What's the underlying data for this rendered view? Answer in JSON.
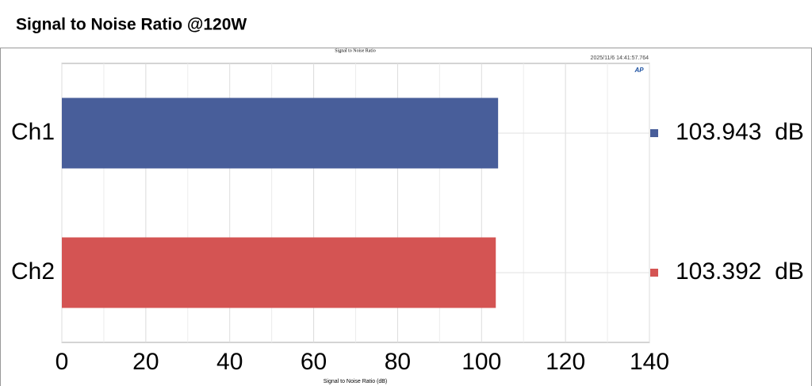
{
  "chart_data": {
    "type": "bar",
    "orientation": "horizontal",
    "title": "Signal to Noise Ratio @120W",
    "inner_title": "Signal to Noise Ratio",
    "timestamp": "2025/11/6 14:41:57.764",
    "logo": "AP",
    "xlabel": "Signal to Noise Ratio (dB)",
    "categories": [
      "Ch1",
      "Ch2"
    ],
    "values": [
      103.943,
      103.392
    ],
    "value_labels": [
      "103.943  dB",
      "103.392  dB"
    ],
    "colors": [
      "#485e9a",
      "#d45453"
    ],
    "xlim": [
      0,
      140
    ],
    "xticks": [
      0,
      20,
      40,
      60,
      80,
      100,
      120,
      140
    ],
    "minor_xticks": [
      10,
      30,
      50,
      70,
      90,
      110,
      130
    ],
    "grid": true
  }
}
